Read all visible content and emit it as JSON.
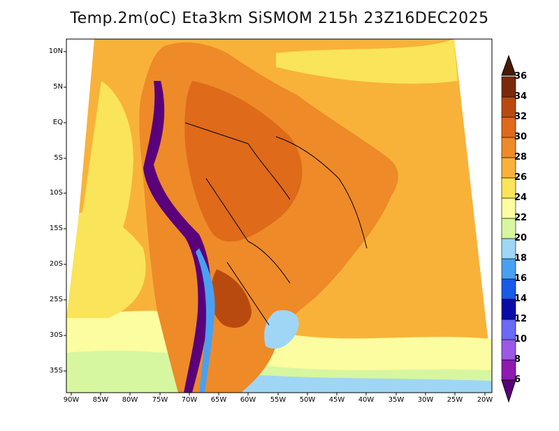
{
  "title": "Temp.2m(oC) Eta3km SiSMOM 215h 23Z16DEC2025",
  "latitude_labels": [
    "10N",
    "5N",
    "EQ",
    "5S",
    "10S",
    "15S",
    "20S",
    "25S",
    "30S",
    "35S"
  ],
  "longitude_labels": [
    "90W",
    "85W",
    "80W",
    "75W",
    "70W",
    "65W",
    "60W",
    "55W",
    "50W",
    "45W",
    "40W",
    "35W",
    "30W",
    "25W",
    "20W"
  ],
  "colorbar": {
    "unit": "oC",
    "levels": [
      "6",
      "8",
      "10",
      "12",
      "14",
      "16",
      "18",
      "20",
      "22",
      "24",
      "26",
      "28",
      "30",
      "32",
      "34",
      "36"
    ],
    "colors": [
      "#5a007a",
      "#8e1ab0",
      "#9a5ae6",
      "#6a6af6",
      "#0a0aa8",
      "#1a5ae6",
      "#4aa0f0",
      "#9fd6f6",
      "#d6f6a0",
      "#fcfca0",
      "#fae45a",
      "#f8b23a",
      "#ee8a28",
      "#de6a1a",
      "#b84a10",
      "#7a2a08",
      "#4a1a06"
    ]
  },
  "map_colors": {
    "ocean_warm": "#f8b23a",
    "ocean_mid": "#fae45a",
    "ocean_cool": "#fcfca0",
    "ocean_cold": "#d6f6a0",
    "land_hot": "#ee8a28",
    "land_hotter": "#de6a1a",
    "land_hottest": "#b84a10",
    "andes_cold": "#5a007a",
    "andes_cool": "#4aa0f0",
    "border": "#000000"
  }
}
